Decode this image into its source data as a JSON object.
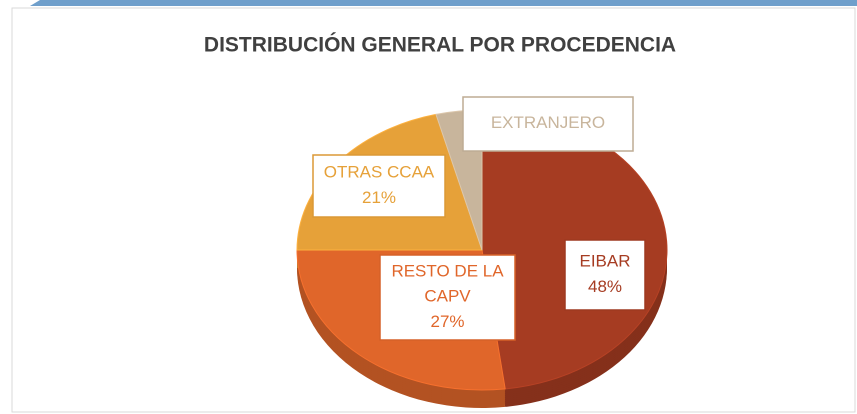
{
  "chart_data": {
    "type": "pie",
    "title": "DISTRIBUCIÓN GENERAL POR PROCEDENCIA",
    "categories": [
      "EIBAR",
      "RESTO DE LA CAPV",
      "OTRAS CCAA",
      "EXTRANJERO"
    ],
    "values": [
      48,
      27,
      21,
      4
    ],
    "value_labels": [
      "48%",
      "27%",
      "21%",
      null
    ],
    "colors": [
      "#a63c22",
      "#e0662a",
      "#e6a139",
      "#c8b59c"
    ]
  }
}
